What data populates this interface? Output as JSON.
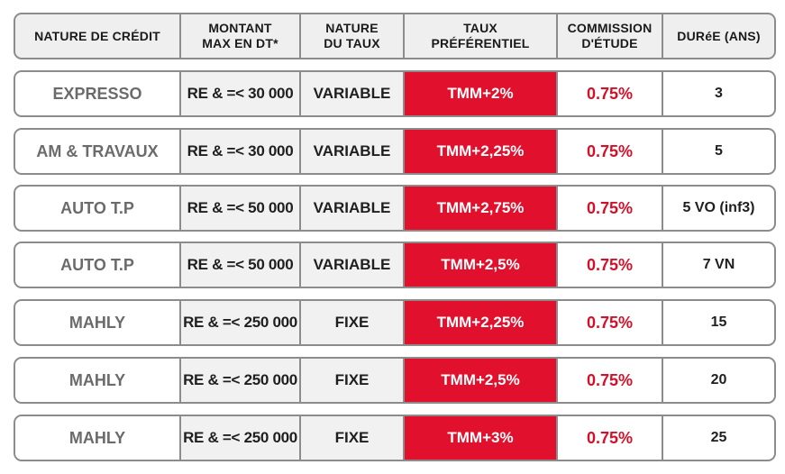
{
  "header": {
    "nature_credit": "NATURE DE CRÉDIT",
    "montant_line1": "MONTANT",
    "montant_line2": "MAX EN DT*",
    "nature_taux_line1": "NATURE",
    "nature_taux_line2": "DU TAUX",
    "taux_line1": "TAUX",
    "taux_line2": "PRÉFÉRENTIEL",
    "commission_line1": "COMMISSION",
    "commission_line2": "D'ÉTUDE",
    "duree": "DURéE (ANS)"
  },
  "rows": [
    {
      "nature": "EXPRESSO",
      "montant": "RE & =< 30 000",
      "taux_type": "VARIABLE",
      "taux": "TMM+2%",
      "commission": "0.75%",
      "duree": "3"
    },
    {
      "nature": "AM & TRAVAUX",
      "montant": "RE & =< 30 000",
      "taux_type": "VARIABLE",
      "taux": "TMM+2,25%",
      "commission": "0.75%",
      "duree": "5"
    },
    {
      "nature": "AUTO T.P",
      "montant": "RE & =< 50 000",
      "taux_type": "VARIABLE",
      "taux": "TMM+2,75%",
      "commission": "0.75%",
      "duree": "5 VO (inf3)"
    },
    {
      "nature": "AUTO T.P",
      "montant": "RE & =< 50 000",
      "taux_type": "VARIABLE",
      "taux": "TMM+2,5%",
      "commission": "0.75%",
      "duree": "7 VN"
    },
    {
      "nature": "MAHLY",
      "montant": "RE & =< 250 000",
      "taux_type": "FIXE",
      "taux": "TMM+2,25%",
      "commission": "0.75%",
      "duree": "15"
    },
    {
      "nature": "MAHLY",
      "montant": "RE & =< 250 000",
      "taux_type": "FIXE",
      "taux": "TMM+2,5%",
      "commission": "0.75%",
      "duree": "20"
    },
    {
      "nature": "MAHLY",
      "montant": "RE & =< 250 000",
      "taux_type": "FIXE",
      "taux": "TMM+3%",
      "commission": "0.75%",
      "duree": "25"
    }
  ],
  "colors": {
    "accent_red": "#e1112e",
    "commission_red": "#d41029",
    "border_gray": "#8c8c8c",
    "header_bg": "#efefef"
  }
}
